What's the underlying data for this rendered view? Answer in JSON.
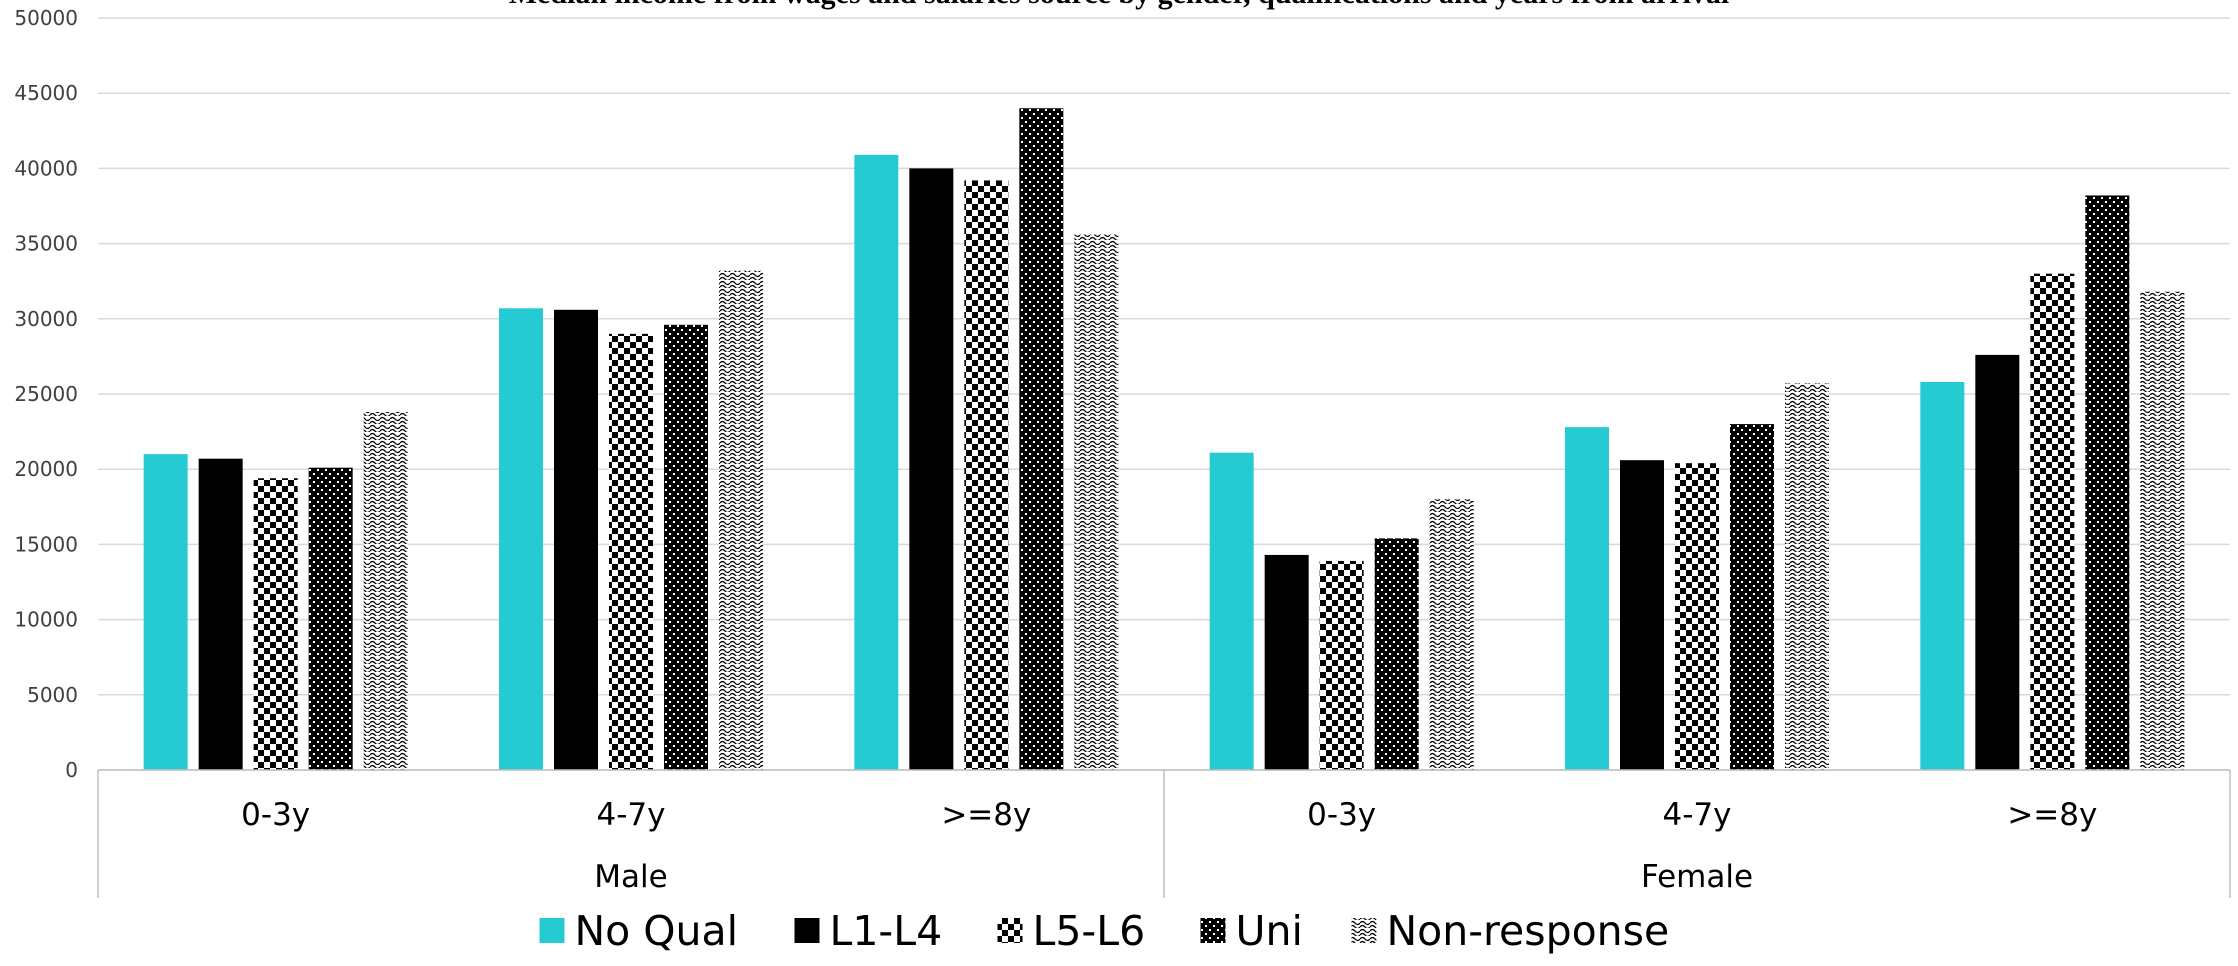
{
  "chart_data": {
    "type": "bar",
    "title": "Median income from wages and salaries source by gender, qualifications and years from arrival",
    "xlabel": "",
    "ylabel": "",
    "ylim": [
      0,
      50000
    ],
    "yticks": [
      0,
      5000,
      10000,
      15000,
      20000,
      25000,
      30000,
      35000,
      40000,
      45000,
      50000
    ],
    "grid": true,
    "legend_position": "bottom",
    "groups": [
      {
        "label": "Male",
        "categories": [
          "0-3y",
          "4-7y",
          ">=8y"
        ]
      },
      {
        "label": "Female",
        "categories": [
          "0-3y",
          "4-7y",
          ">=8y"
        ]
      }
    ],
    "categories": [
      "0-3y",
      "4-7y",
      ">=8y",
      "0-3y",
      "4-7y",
      ">=8y"
    ],
    "series": [
      {
        "name": "No Qual",
        "color": "#26cad3",
        "pattern": "solid",
        "values": [
          21000,
          30700,
          40900,
          21100,
          22800,
          25800
        ]
      },
      {
        "name": "L1-L4",
        "color": "#000000",
        "pattern": "solid",
        "values": [
          20700,
          30600,
          40000,
          14300,
          20600,
          27600
        ]
      },
      {
        "name": "L5-L6",
        "color": "#000000",
        "pattern": "checker",
        "values": [
          19400,
          29000,
          39200,
          13900,
          20400,
          33000
        ]
      },
      {
        "name": "Uni",
        "color": "#000000",
        "pattern": "dots",
        "values": [
          20100,
          29600,
          44000,
          15400,
          23000,
          38200
        ]
      },
      {
        "name": "Non-response",
        "color": "#000000",
        "pattern": "waves",
        "values": [
          23800,
          33200,
          35600,
          18000,
          25700,
          31800
        ]
      }
    ]
  }
}
